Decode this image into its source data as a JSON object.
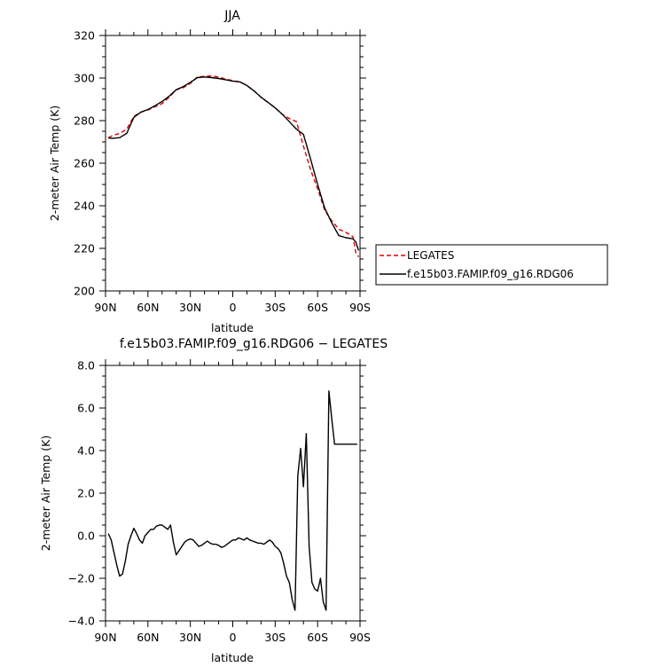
{
  "chart_data": [
    {
      "type": "line",
      "title": "JJA",
      "xlabel": "latitude",
      "ylabel": "2-meter Air Temp (K)",
      "xlim": [
        90,
        -90
      ],
      "ylim": [
        200,
        320
      ],
      "x_ticks": [
        90,
        60,
        30,
        0,
        -30,
        -60,
        -90
      ],
      "x_tick_labels": [
        "90N",
        "60N",
        "30N",
        "0",
        "30S",
        "60S",
        "90S"
      ],
      "y_ticks": [
        200,
        220,
        240,
        260,
        280,
        300,
        320
      ],
      "y_tick_labels": [
        "200",
        "220",
        "240",
        "260",
        "280",
        "300",
        "320"
      ],
      "legend_position": "right",
      "series": [
        {
          "name": "LEGATES",
          "color": "#e00000",
          "dash": "dashed",
          "x": [
            88,
            85,
            80,
            75,
            70,
            65,
            60,
            55,
            50,
            45,
            40,
            35,
            30,
            25,
            20,
            15,
            10,
            5,
            0,
            -5,
            -10,
            -15,
            -20,
            -25,
            -30,
            -35,
            -40,
            -45,
            -50,
            -55,
            -60,
            -65,
            -70,
            -75,
            -80,
            -85,
            -87,
            -89
          ],
          "y": [
            272,
            273,
            274,
            276,
            282,
            284,
            285,
            286.5,
            288,
            291,
            294.5,
            295.5,
            297.5,
            300.5,
            300.8,
            301,
            300.5,
            299.5,
            298.8,
            298.2,
            296.5,
            294,
            291,
            288.5,
            286,
            283,
            281,
            279.5,
            268,
            257,
            248,
            238,
            233,
            229,
            227.5,
            225.5,
            218,
            216
          ]
        },
        {
          "name": "f.e15b03.FAMIP.f09_g16.RDG06",
          "color": "#000000",
          "dash": "solid",
          "x": [
            88,
            85,
            80,
            75,
            70,
            65,
            60,
            55,
            50,
            45,
            40,
            35,
            30,
            25,
            20,
            15,
            10,
            5,
            0,
            -5,
            -10,
            -15,
            -20,
            -25,
            -30,
            -35,
            -40,
            -45,
            -50,
            -55,
            -60,
            -65,
            -70,
            -75,
            -80,
            -85,
            -87,
            -89
          ],
          "y": [
            271.8,
            271.7,
            272,
            274,
            281.5,
            284,
            285.2,
            287,
            289,
            291.5,
            294.5,
            296,
            298,
            300.2,
            300.5,
            300.2,
            299.8,
            299.2,
            298.6,
            298.2,
            296.5,
            294,
            291,
            288.5,
            286,
            283,
            279.5,
            276,
            273.5,
            262,
            250,
            239,
            232,
            226,
            225,
            224.5,
            223,
            219
          ]
        }
      ]
    },
    {
      "type": "line",
      "title": "f.e15b03.FAMIP.f09_g16.RDG06 − LEGATES",
      "xlabel": "latitude",
      "ylabel": "2-meter Air Temp (K)",
      "xlim": [
        90,
        -90
      ],
      "ylim": [
        -4,
        8
      ],
      "x_ticks": [
        90,
        60,
        30,
        0,
        -30,
        -60,
        -90
      ],
      "x_tick_labels": [
        "90N",
        "60N",
        "30N",
        "0",
        "30S",
        "60S",
        "90S"
      ],
      "y_ticks": [
        -4,
        -2,
        0,
        2,
        4,
        6,
        8
      ],
      "y_tick_labels": [
        "−4.0",
        "−2.0",
        "0.0",
        "2.0",
        "4.0",
        "6.0",
        "8.0"
      ],
      "series": [
        {
          "color": "#000000",
          "dash": "solid",
          "x": [
            88,
            86,
            84,
            82,
            80,
            78,
            76,
            74,
            72,
            70,
            68,
            66,
            64,
            62,
            60,
            58,
            56,
            54,
            52,
            50,
            48,
            46,
            44,
            42,
            40,
            38,
            36,
            34,
            32,
            30,
            28,
            26,
            24,
            22,
            20,
            18,
            16,
            14,
            12,
            10,
            8,
            6,
            4,
            2,
            0,
            -2,
            -4,
            -6,
            -8,
            -10,
            -12,
            -14,
            -16,
            -18,
            -20,
            -22,
            -24,
            -26,
            -28,
            -30,
            -32,
            -34,
            -36,
            -38,
            -40,
            -42,
            -44,
            -46,
            -48,
            -50,
            -52,
            -54,
            -56,
            -58,
            -60,
            -62,
            -64,
            -66,
            -68,
            -70,
            -72,
            -74,
            -76,
            -78,
            -80,
            -82,
            -84,
            -86,
            -88
          ],
          "y": [
            0.1,
            -0.2,
            -0.8,
            -1.4,
            -1.9,
            -1.8,
            -1.2,
            -0.4,
            0.0,
            0.35,
            0.1,
            -0.2,
            -0.35,
            0.0,
            0.15,
            0.3,
            0.3,
            0.45,
            0.5,
            0.5,
            0.4,
            0.3,
            0.5,
            -0.3,
            -0.9,
            -0.7,
            -0.5,
            -0.3,
            -0.2,
            -0.15,
            -0.2,
            -0.35,
            -0.5,
            -0.45,
            -0.35,
            -0.25,
            -0.35,
            -0.4,
            -0.4,
            -0.45,
            -0.55,
            -0.5,
            -0.4,
            -0.3,
            -0.2,
            -0.2,
            -0.1,
            -0.15,
            -0.2,
            -0.1,
            -0.2,
            -0.25,
            -0.3,
            -0.35,
            -0.35,
            -0.4,
            -0.3,
            -0.2,
            -0.3,
            -0.5,
            -0.6,
            -0.8,
            -1.3,
            -1.9,
            -2.2,
            -3.0,
            -3.5,
            2.8,
            4.1,
            2.3,
            4.8,
            -0.5,
            -2.2,
            -2.5,
            -2.6,
            -2.0,
            -3.1,
            -3.5,
            6.8,
            5.5,
            4.3,
            4.3,
            4.3,
            4.3,
            4.3,
            4.3,
            4.3,
            4.3,
            4.3
          ]
        }
      ]
    }
  ]
}
